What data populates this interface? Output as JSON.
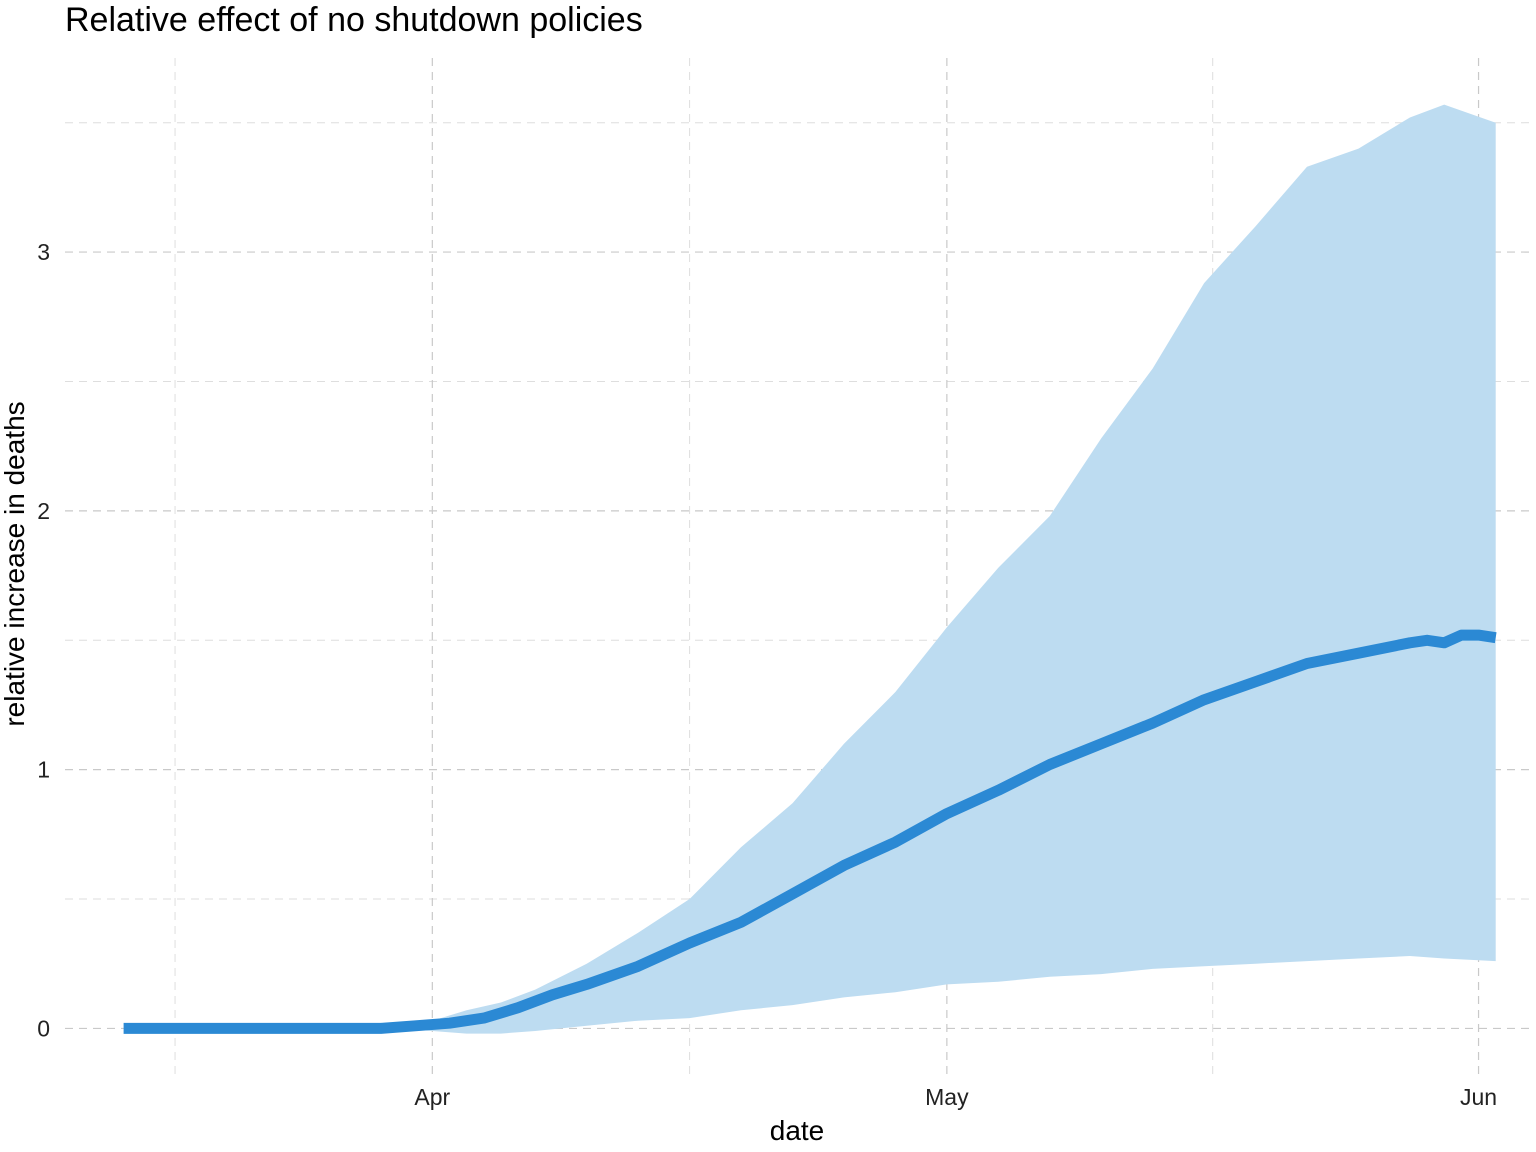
{
  "chart_data": {
    "type": "line",
    "title": "Relative effect of no shutdown policies",
    "xlabel": "date",
    "ylabel": "relative increase in deaths",
    "x_axis": {
      "type": "date",
      "range": [
        "2020-03-10",
        "2020-06-04"
      ],
      "ticks": [
        {
          "date": "2020-04-01",
          "label": "Apr"
        },
        {
          "date": "2020-05-01",
          "label": "May"
        },
        {
          "date": "2020-06-01",
          "label": "Jun"
        }
      ]
    },
    "y_axis": {
      "range": [
        -0.18,
        3.75
      ],
      "ticks": [
        0,
        1,
        2,
        3
      ]
    },
    "grid": true,
    "colors": {
      "line": "#2b89d4",
      "band": "#bddcf1"
    },
    "series": [
      {
        "style": "band",
        "x": [
          "2020-03-30",
          "2020-04-01",
          "2020-04-03",
          "2020-04-05",
          "2020-04-07",
          "2020-04-10",
          "2020-04-13",
          "2020-04-16",
          "2020-04-19",
          "2020-04-22",
          "2020-04-25",
          "2020-04-28",
          "2020-05-01",
          "2020-05-04",
          "2020-05-07",
          "2020-05-10",
          "2020-05-13",
          "2020-05-16",
          "2020-05-19",
          "2020-05-22",
          "2020-05-25",
          "2020-05-28",
          "2020-05-30",
          "2020-06-02"
        ],
        "upper": [
          0.0,
          0.03,
          0.07,
          0.1,
          0.15,
          0.25,
          0.37,
          0.5,
          0.7,
          0.87,
          1.1,
          1.3,
          1.55,
          1.78,
          1.98,
          2.28,
          2.55,
          2.88,
          3.1,
          3.33,
          3.4,
          3.52,
          3.57,
          3.5
        ],
        "lower": [
          0.0,
          -0.01,
          -0.02,
          -0.02,
          -0.01,
          0.01,
          0.03,
          0.04,
          0.07,
          0.09,
          0.12,
          0.14,
          0.17,
          0.18,
          0.2,
          0.21,
          0.23,
          0.24,
          0.25,
          0.26,
          0.27,
          0.28,
          0.27,
          0.26
        ]
      },
      {
        "style": "line",
        "x": [
          "2020-03-14",
          "2020-03-20",
          "2020-03-25",
          "2020-03-29",
          "2020-03-31",
          "2020-04-02",
          "2020-04-04",
          "2020-04-06",
          "2020-04-08",
          "2020-04-10",
          "2020-04-13",
          "2020-04-16",
          "2020-04-19",
          "2020-04-22",
          "2020-04-25",
          "2020-04-28",
          "2020-05-01",
          "2020-05-04",
          "2020-05-07",
          "2020-05-10",
          "2020-05-13",
          "2020-05-16",
          "2020-05-19",
          "2020-05-22",
          "2020-05-25",
          "2020-05-28",
          "2020-05-29",
          "2020-05-30",
          "2020-05-31",
          "2020-06-01",
          "2020-06-02"
        ],
        "values": [
          0.0,
          0.0,
          0.0,
          0.0,
          0.01,
          0.02,
          0.04,
          0.08,
          0.13,
          0.17,
          0.24,
          0.33,
          0.41,
          0.52,
          0.63,
          0.72,
          0.83,
          0.92,
          1.02,
          1.1,
          1.18,
          1.27,
          1.34,
          1.41,
          1.45,
          1.49,
          1.5,
          1.49,
          1.52,
          1.52,
          1.51
        ]
      }
    ]
  }
}
